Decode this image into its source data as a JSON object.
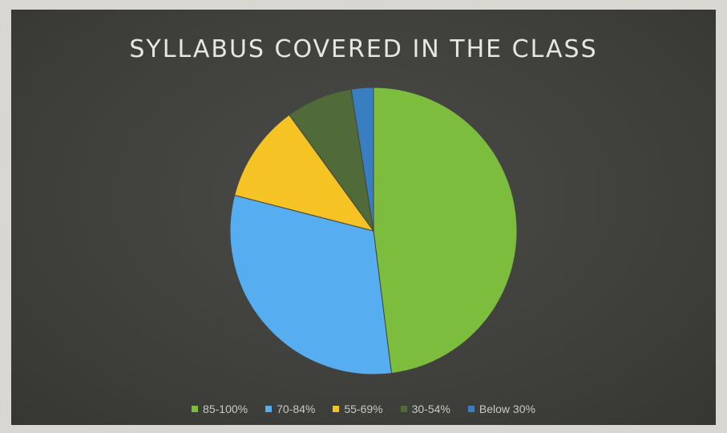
{
  "chart_data": {
    "type": "pie",
    "title": "SYLLABUS COVERED IN THE CLASS",
    "categories": [
      "85-100%",
      "70-84%",
      "55-69%",
      "30-54%",
      "Below 30%"
    ],
    "values": [
      48,
      31,
      11,
      7.5,
      2.5
    ],
    "colors": [
      "#7cbd3e",
      "#56adf0",
      "#f6c324",
      "#506a3a",
      "#3a7ec2"
    ],
    "legend_position": "bottom"
  }
}
